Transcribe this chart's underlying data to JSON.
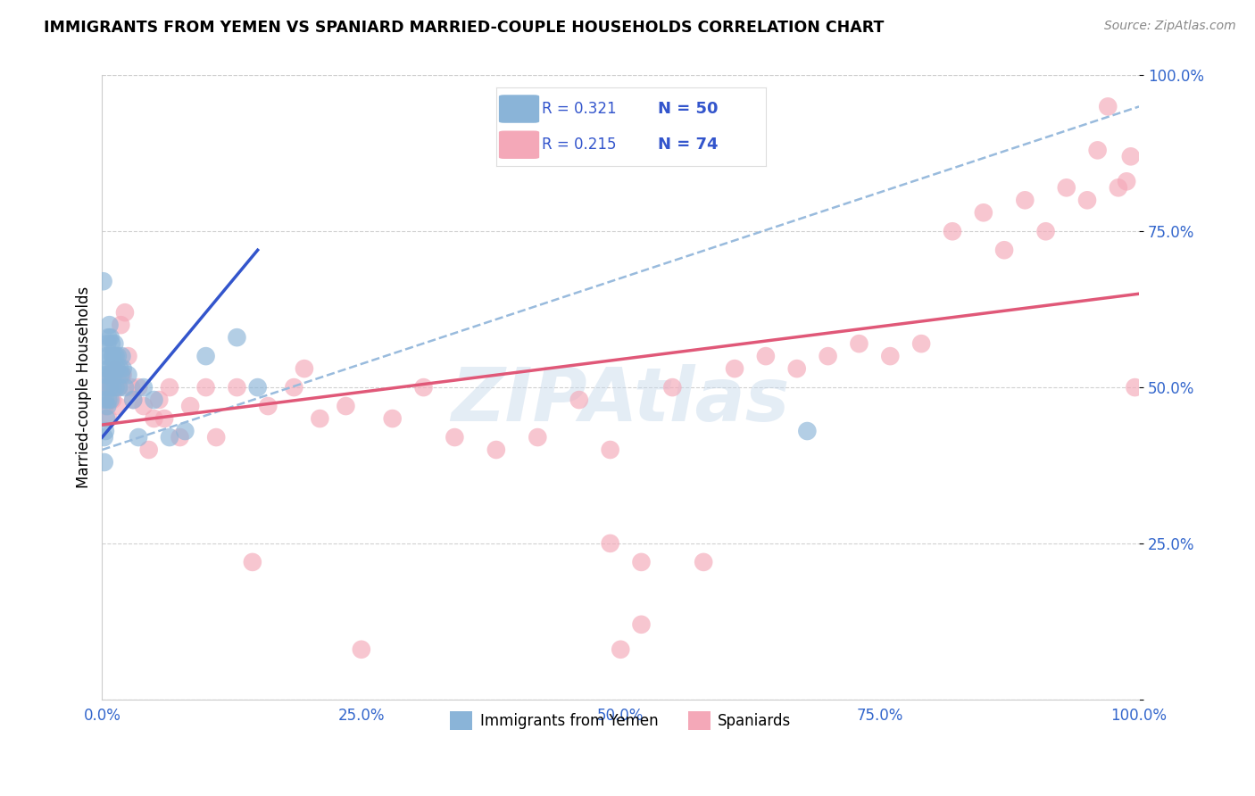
{
  "title": "IMMIGRANTS FROM YEMEN VS SPANIARD MARRIED-COUPLE HOUSEHOLDS CORRELATION CHART",
  "source": "Source: ZipAtlas.com",
  "ylabel": "Married-couple Households",
  "xlabel": "",
  "xlim": [
    0.0,
    1.0
  ],
  "ylim": [
    0.0,
    1.0
  ],
  "x_ticks": [
    0.0,
    0.25,
    0.5,
    0.75,
    1.0
  ],
  "x_tick_labels": [
    "0.0%",
    "25.0%",
    "50.0%",
    "75.0%",
    "100.0%"
  ],
  "y_ticks": [
    0.0,
    0.25,
    0.5,
    0.75,
    1.0
  ],
  "y_tick_labels": [
    "",
    "25.0%",
    "50.0%",
    "75.0%",
    "100.0%"
  ],
  "blue_color": "#8ab4d8",
  "pink_color": "#f4a8b8",
  "blue_line_color": "#3355cc",
  "pink_line_color": "#e05878",
  "gray_dash_color": "#99bbdd",
  "legend_label_blue": "Immigrants from Yemen",
  "legend_label_pink": "Spaniards",
  "watermark": "ZIPAtlas",
  "blue_x": [
    0.001,
    0.002,
    0.002,
    0.003,
    0.003,
    0.003,
    0.004,
    0.004,
    0.004,
    0.005,
    0.005,
    0.005,
    0.006,
    0.006,
    0.006,
    0.007,
    0.007,
    0.007,
    0.008,
    0.008,
    0.008,
    0.009,
    0.009,
    0.01,
    0.01,
    0.011,
    0.011,
    0.012,
    0.012,
    0.013,
    0.013,
    0.014,
    0.015,
    0.016,
    0.017,
    0.018,
    0.019,
    0.02,
    0.022,
    0.025,
    0.03,
    0.035,
    0.04,
    0.05,
    0.065,
    0.08,
    0.1,
    0.13,
    0.15,
    0.68
  ],
  "blue_y": [
    0.67,
    0.42,
    0.38,
    0.52,
    0.48,
    0.43,
    0.55,
    0.5,
    0.45,
    0.57,
    0.52,
    0.47,
    0.58,
    0.53,
    0.48,
    0.6,
    0.55,
    0.5,
    0.58,
    0.53,
    0.48,
    0.57,
    0.52,
    0.55,
    0.5,
    0.55,
    0.52,
    0.57,
    0.53,
    0.55,
    0.5,
    0.53,
    0.55,
    0.5,
    0.53,
    0.52,
    0.55,
    0.53,
    0.5,
    0.52,
    0.48,
    0.42,
    0.5,
    0.48,
    0.42,
    0.43,
    0.55,
    0.58,
    0.5,
    0.43
  ],
  "pink_x": [
    0.002,
    0.003,
    0.004,
    0.005,
    0.006,
    0.007,
    0.008,
    0.009,
    0.01,
    0.011,
    0.012,
    0.013,
    0.014,
    0.015,
    0.016,
    0.018,
    0.019,
    0.02,
    0.022,
    0.025,
    0.028,
    0.03,
    0.035,
    0.04,
    0.045,
    0.05,
    0.055,
    0.06,
    0.065,
    0.075,
    0.085,
    0.1,
    0.11,
    0.13,
    0.145,
    0.16,
    0.185,
    0.195,
    0.21,
    0.235,
    0.28,
    0.31,
    0.34,
    0.38,
    0.42,
    0.46,
    0.49,
    0.52,
    0.55,
    0.58,
    0.61,
    0.64,
    0.67,
    0.7,
    0.73,
    0.76,
    0.79,
    0.82,
    0.85,
    0.87,
    0.89,
    0.91,
    0.93,
    0.95,
    0.96,
    0.97,
    0.98,
    0.988,
    0.992,
    0.996,
    0.49,
    0.5,
    0.52,
    0.25
  ],
  "pink_y": [
    0.48,
    0.47,
    0.5,
    0.5,
    0.45,
    0.52,
    0.5,
    0.52,
    0.48,
    0.53,
    0.5,
    0.5,
    0.53,
    0.47,
    0.5,
    0.6,
    0.52,
    0.52,
    0.62,
    0.55,
    0.5,
    0.48,
    0.5,
    0.47,
    0.4,
    0.45,
    0.48,
    0.45,
    0.5,
    0.42,
    0.47,
    0.5,
    0.42,
    0.5,
    0.22,
    0.47,
    0.5,
    0.53,
    0.45,
    0.47,
    0.45,
    0.5,
    0.42,
    0.4,
    0.42,
    0.48,
    0.25,
    0.22,
    0.5,
    0.22,
    0.53,
    0.55,
    0.53,
    0.55,
    0.57,
    0.55,
    0.57,
    0.75,
    0.78,
    0.72,
    0.8,
    0.75,
    0.82,
    0.8,
    0.88,
    0.95,
    0.82,
    0.83,
    0.87,
    0.5,
    0.4,
    0.08,
    0.12,
    0.08
  ],
  "blue_line_x0": 0.0,
  "blue_line_y0": 0.42,
  "blue_line_x1": 0.15,
  "blue_line_y1": 0.72,
  "pink_line_x0": 0.0,
  "pink_line_y0": 0.44,
  "pink_line_x1": 1.0,
  "pink_line_y1": 0.65,
  "gray_line_x0": 0.0,
  "gray_line_y0": 0.4,
  "gray_line_x1": 1.0,
  "gray_line_y1": 0.95
}
